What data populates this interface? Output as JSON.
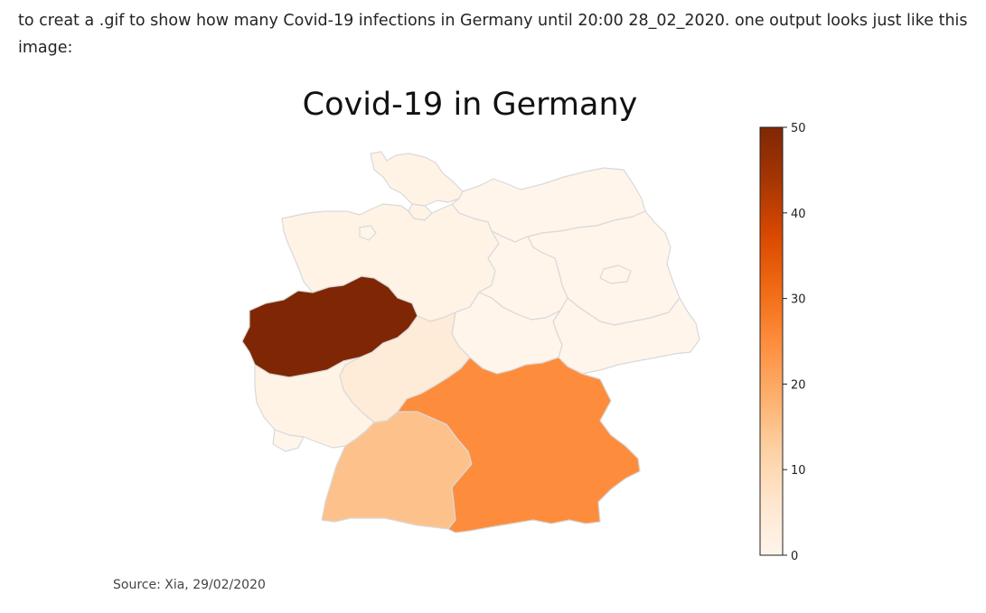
{
  "post": {
    "text": "to creat a .gif to show how many Covid-19 infections in Germany until 20:00 28_02_2020. one output looks just like this image:"
  },
  "chart_data": {
    "type": "choropleth",
    "title": "Covid-19 in Germany",
    "source": "Source: Xia, 29/02/2020",
    "colorbar": {
      "min": 0,
      "max": 50,
      "ticks": [
        "0",
        "10",
        "20",
        "30",
        "40",
        "50"
      ],
      "cmap": "Oranges",
      "stops": [
        "#fff5eb",
        "#fee6ce",
        "#fdd0a2",
        "#fdae6b",
        "#fd8d3c",
        "#f16913",
        "#d94801",
        "#a63603",
        "#7f2704"
      ]
    },
    "regions": [
      {
        "name": "Nordrhein-Westfalen",
        "value": 50
      },
      {
        "name": "Bayern",
        "value": 25
      },
      {
        "name": "Baden-Württemberg",
        "value": 15
      },
      {
        "name": "Hessen",
        "value": 4
      },
      {
        "name": "Rheinland-Pfalz",
        "value": 1
      },
      {
        "name": "Schleswig-Holstein",
        "value": 1
      },
      {
        "name": "Hamburg",
        "value": 1
      },
      {
        "name": "Niedersachsen",
        "value": 1
      },
      {
        "name": "Bremen",
        "value": 0
      },
      {
        "name": "Mecklenburg-Vorpommern",
        "value": 0
      },
      {
        "name": "Brandenburg",
        "value": 0
      },
      {
        "name": "Berlin",
        "value": 0
      },
      {
        "name": "Sachsen-Anhalt",
        "value": 0
      },
      {
        "name": "Sachsen",
        "value": 0
      },
      {
        "name": "Thüringen",
        "value": 0
      },
      {
        "name": "Saarland",
        "value": 0
      }
    ]
  }
}
